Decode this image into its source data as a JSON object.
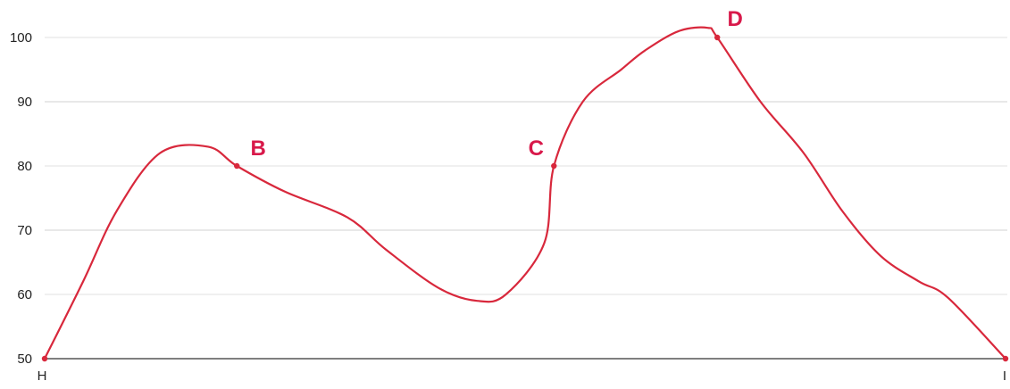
{
  "chart_data": {
    "type": "line",
    "title": "",
    "xlabel": "",
    "ylabel": "",
    "ylim": [
      50,
      100
    ],
    "yticks": [
      50,
      60,
      70,
      80,
      90,
      100
    ],
    "grid": true,
    "x_endpoint_labels": [
      "H",
      "I"
    ],
    "line_color": "#d8283c",
    "label_color": "#d8194a",
    "series": [
      {
        "points": [
          {
            "x": 0.0,
            "y": 50
          },
          {
            "x": 0.04,
            "y": 62
          },
          {
            "x": 0.075,
            "y": 73
          },
          {
            "x": 0.12,
            "y": 82
          },
          {
            "x": 0.17,
            "y": 83
          },
          {
            "x": 0.2,
            "y": 80
          },
          {
            "x": 0.25,
            "y": 76
          },
          {
            "x": 0.315,
            "y": 72
          },
          {
            "x": 0.355,
            "y": 67
          },
          {
            "x": 0.41,
            "y": 61
          },
          {
            "x": 0.45,
            "y": 59
          },
          {
            "x": 0.48,
            "y": 60
          },
          {
            "x": 0.52,
            "y": 68
          },
          {
            "x": 0.53,
            "y": 80
          },
          {
            "x": 0.56,
            "y": 90
          },
          {
            "x": 0.6,
            "y": 95
          },
          {
            "x": 0.625,
            "y": 98
          },
          {
            "x": 0.66,
            "y": 101
          },
          {
            "x": 0.69,
            "y": 101.5
          },
          {
            "x": 0.7,
            "y": 100
          },
          {
            "x": 0.745,
            "y": 90
          },
          {
            "x": 0.79,
            "y": 82
          },
          {
            "x": 0.83,
            "y": 73
          },
          {
            "x": 0.87,
            "y": 66
          },
          {
            "x": 0.91,
            "y": 62
          },
          {
            "x": 0.94,
            "y": 59.5
          },
          {
            "x": 1.0,
            "y": 50
          }
        ]
      }
    ],
    "labeled_points": [
      {
        "label": "B",
        "x": 0.2,
        "y": 80
      },
      {
        "label": "C",
        "x": 0.53,
        "y": 80
      },
      {
        "label": "D",
        "x": 0.7,
        "y": 100
      }
    ],
    "endpoint_markers": [
      {
        "x": 0.0,
        "y": 50
      },
      {
        "x": 1.0,
        "y": 50
      }
    ]
  }
}
